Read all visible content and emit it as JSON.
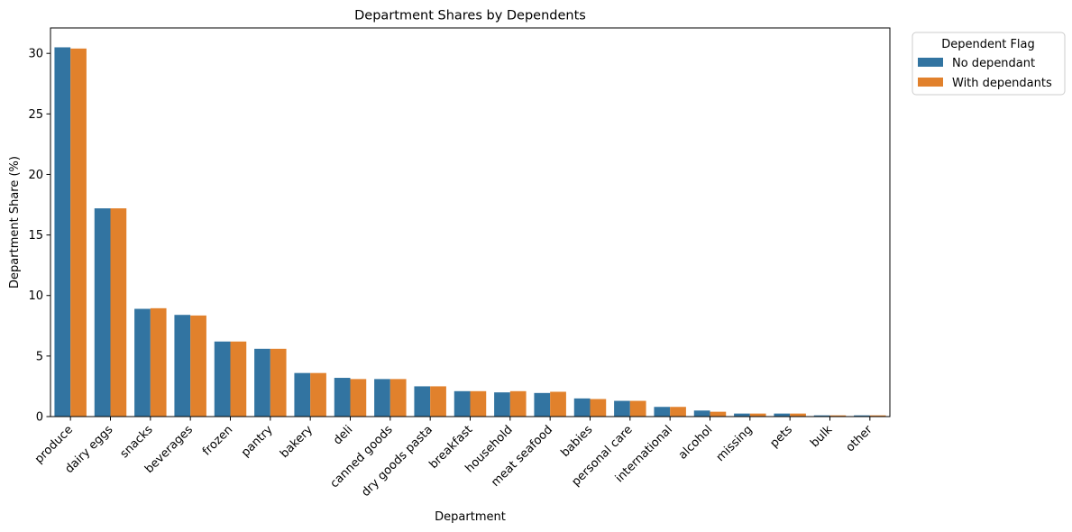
{
  "chart_data": {
    "type": "bar",
    "title": "Department Shares by Dependents",
    "xlabel": "Department",
    "ylabel": "Department Share (%)",
    "ylim": [
      0,
      32.1
    ],
    "yticks": [
      0,
      5,
      10,
      15,
      20,
      25,
      30
    ],
    "grid": false,
    "legend": {
      "title": "Dependent Flag",
      "placement": "outside top-right"
    },
    "categories": [
      "produce",
      "dairy eggs",
      "snacks",
      "beverages",
      "frozen",
      "pantry",
      "bakery",
      "deli",
      "canned goods",
      "dry goods pasta",
      "breakfast",
      "household",
      "meat seafood",
      "babies",
      "personal care",
      "international",
      "alcohol",
      "missing",
      "pets",
      "bulk",
      "other"
    ],
    "series": [
      {
        "name": "No dependant",
        "color": "#3274a1",
        "values": [
          30.5,
          17.2,
          8.9,
          8.4,
          6.2,
          5.6,
          3.6,
          3.2,
          3.1,
          2.5,
          2.1,
          2.0,
          1.95,
          1.5,
          1.3,
          0.8,
          0.5,
          0.25,
          0.25,
          0.1,
          0.1
        ]
      },
      {
        "name": "With dependants",
        "color": "#e1812c",
        "values": [
          30.4,
          17.2,
          8.95,
          8.35,
          6.2,
          5.6,
          3.6,
          3.1,
          3.1,
          2.5,
          2.1,
          2.1,
          2.05,
          1.45,
          1.3,
          0.8,
          0.4,
          0.25,
          0.25,
          0.1,
          0.1
        ]
      }
    ]
  }
}
